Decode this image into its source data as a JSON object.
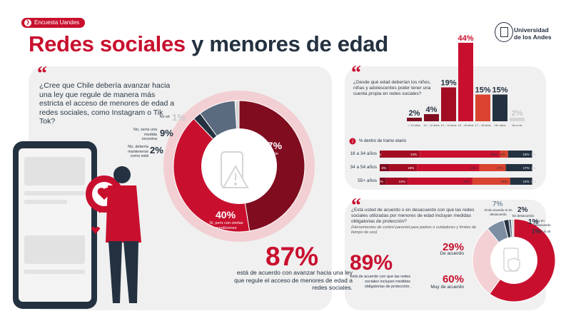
{
  "header": {
    "tag": "Encuesta Uandes",
    "title_red": "Redes sociales",
    "title_dark": "y menores de edad",
    "university_line1": "Universidad",
    "university_line2": "de los Andes"
  },
  "q1": {
    "mark": "“",
    "question": "¿Cree que Chile debería avanzar hacia una ley que regule de manera más estricta el acceso de menores de edad a redes sociales, como Instagram o Tik Tok?",
    "headline_pct": "87%",
    "headline_text": "está de acuerdo con avanzar hacia una ley que regule el acceso de menores de edad a redes sociales."
  },
  "q2": {
    "mark": "“",
    "question": "¿Desde qué edad deberían los niños, niñas y adolescentes poder tener una cuenta propia en redes sociales?",
    "tramo_header": "% dentro de tramo etario"
  },
  "q3": {
    "mark": "“",
    "question": "¿Está usted de acuerdo o en desacuerdo con que las redes sociales utilizadas por menores de edad incluyan medidas obligatorias de protección?",
    "note": "(Herramientas de control parental para padres o cuidadores y límites de tiempo de uso)",
    "headline_pct": "89%",
    "headline_text": "está de acuerdo con que las redes sociales incluyan medidas obligatorias de protección."
  },
  "colors": {
    "red": "#c8102e",
    "dark_red": "#7f0c1f",
    "light_red": "#e8a3ab",
    "navy": "#243140",
    "slate": "#5a6a7f",
    "grey": "#d5d5d5"
  },
  "chart_data": [
    {
      "type": "pie",
      "id": "ley",
      "slices": [
        {
          "label": "Sí, totalmente",
          "pct_label": "47%",
          "value": 47,
          "color": "#7f0c1f"
        },
        {
          "label": "Sí, pero con ciertas condiciones",
          "pct_label": "40%",
          "value": 40,
          "color": "#c8102e"
        },
        {
          "label": "No, debería mantenerse como está",
          "pct_label": "2%",
          "value": 2,
          "color": "#243140"
        },
        {
          "label": "No, sería una medida excesiva",
          "pct_label": "9%",
          "value": 9,
          "color": "#5a6a7f"
        },
        {
          "label": "No sé",
          "pct_label": "1%",
          "value": 1,
          "color": "#d5d5d5"
        }
      ]
    },
    {
      "type": "bar",
      "id": "edad",
      "categories": [
        "< 10 años",
        "10 – 12 años",
        "13 – 14 años",
        "15 – 16 años",
        "17 – 18 años",
        "18+ años",
        "No lo sé"
      ],
      "values": [
        2,
        4,
        19,
        44,
        15,
        15,
        2
      ],
      "value_labels": [
        "2%",
        "4%",
        "19%",
        "44%",
        "15%",
        "15%",
        "2%"
      ],
      "colors": [
        "#7f0c1f",
        "#7f0c1f",
        "#a30d24",
        "#c8102e",
        "#d9432f",
        "#243140",
        "#d5d5d5"
      ],
      "ylim": [
        0,
        44
      ]
    },
    {
      "type": "bar",
      "id": "tramo",
      "stacked": true,
      "categories": [
        "18 a 34 años",
        "34 a 54 años",
        "55+ años"
      ],
      "series": [
        {
          "values": [
            1,
            6,
            4
          ],
          "labels": [
            "1%",
            "6%",
            "4%"
          ],
          "color": "#7f0c1f"
        },
        {
          "values": [
            24,
            18,
            14
          ],
          "labels": [
            "24%",
            "18%",
            "14%"
          ],
          "color": "#a30d24"
        },
        {
          "values": [
            50,
            40,
            41
          ],
          "labels": [
            "50%",
            "40%",
            "41%"
          ],
          "color": "#c8102e"
        },
        {
          "values": [
            5,
            17,
            24
          ],
          "labels": [
            "5%",
            "17%",
            "24%"
          ],
          "color": "#d9432f"
        },
        {
          "values": [
            15,
            17,
            14
          ],
          "labels": [
            "15%",
            "17%",
            "14%"
          ],
          "color": "#243140"
        },
        {
          "values": [
            2,
            2,
            2
          ],
          "labels": [
            "2%",
            "2%",
            "2%"
          ],
          "color": "#d5d5d5"
        }
      ]
    },
    {
      "type": "pie",
      "id": "proteccion",
      "slices": [
        {
          "label": "Muy de acuerdo",
          "pct_label": "60%",
          "value": 60,
          "color": "#c8102e"
        },
        {
          "label": "De acuerdo",
          "pct_label": "29%",
          "value": 29,
          "color": "#f2d0d4"
        },
        {
          "label": "Ni de acuerdo ni en desacuerdo",
          "pct_label": "7%",
          "value": 7,
          "color": "#7d8ea3"
        },
        {
          "label": "En desacuerdo",
          "pct_label": "2%",
          "value": 2,
          "color": "#243140"
        },
        {
          "label": "Muy en desacuerdo",
          "pct_label": "1%",
          "value": 1,
          "color": "#5a6a7f"
        },
        {
          "label": "No lo sé",
          "pct_label": "1%",
          "value": 1,
          "color": "#d5d5d5"
        }
      ]
    }
  ]
}
